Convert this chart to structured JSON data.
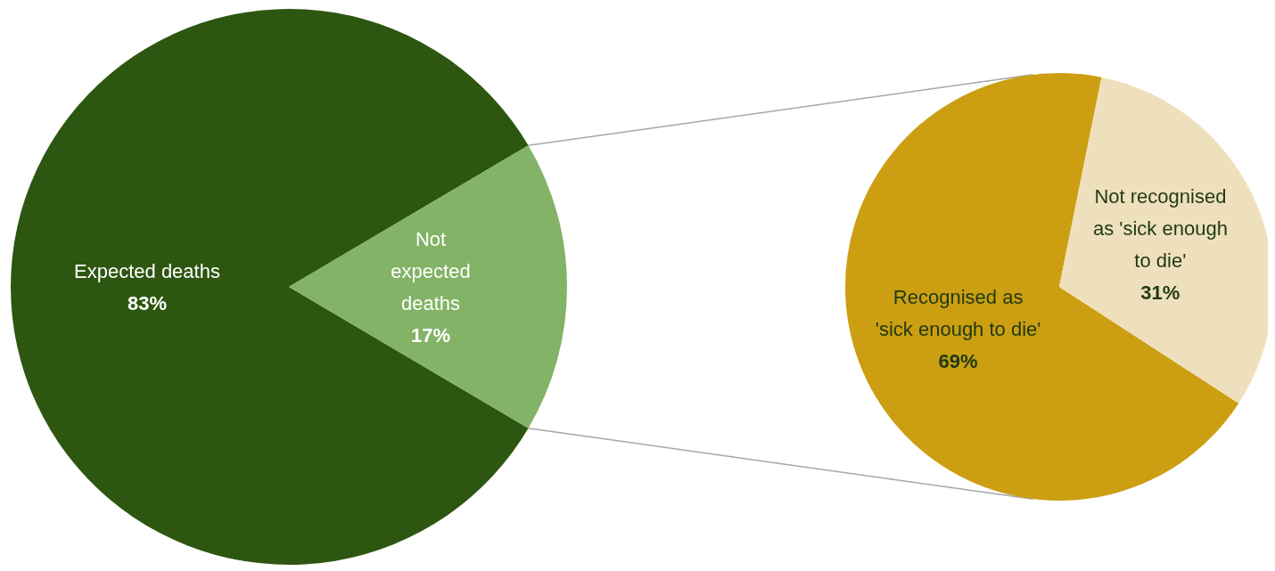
{
  "chart_data": [
    {
      "type": "pie",
      "categories": [
        "Expected deaths",
        "Not expected deaths"
      ],
      "values": [
        83,
        17
      ],
      "colors": [
        "#2d5610",
        "#82b366"
      ],
      "value_labels": [
        "83%",
        "17%"
      ]
    },
    {
      "type": "pie",
      "categories": [
        "Recognised as 'sick enough to die'",
        "Not recognised as 'sick enough to die'"
      ],
      "values": [
        69,
        31
      ],
      "colors": [
        "#cc9e12",
        "#efe0bd"
      ],
      "value_labels": [
        "69%",
        "31%"
      ]
    }
  ]
}
